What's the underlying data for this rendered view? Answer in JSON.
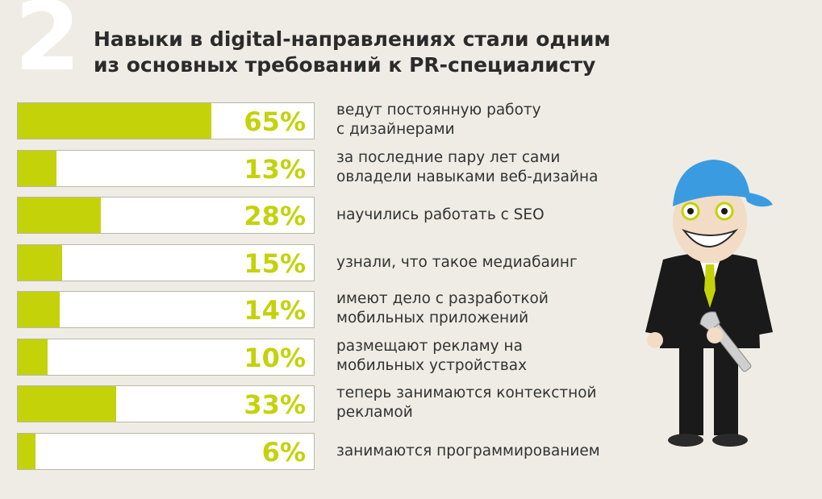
{
  "section_number": "2",
  "title_lines": [
    "Навыки в digital-направлениях стали одним",
    "из основных требований к PR-специалисту"
  ],
  "colors": {
    "accent": "#c4d20a",
    "background": "#eeece4",
    "bar_track": "#ffffff",
    "text": "#2b2b2b",
    "hat": "#3b9be0"
  },
  "chart_data": {
    "type": "bar",
    "orientation": "horizontal",
    "unit": "%",
    "xlim": [
      0,
      100
    ],
    "categories": [
      "ведут постоянную работу с дизайнерами",
      "за последние пару лет сами овладели навыками веб-дизайна",
      "научились работать с SEO",
      "узнали, что такое медиабаинг",
      "имеют дело с разработкой мобильных приложений",
      "размещают рекламу на мобильных устройствах",
      "теперь занимаются контекстной рекламой",
      "занимаются программированием"
    ],
    "values": [
      65,
      13,
      28,
      15,
      14,
      10,
      33,
      6
    ],
    "value_labels": [
      "65%",
      "13%",
      "28%",
      "15%",
      "14%",
      "10%",
      "33%",
      "6%"
    ],
    "label_lines": [
      [
        "ведут постоянную работу",
        "с дизайнерами"
      ],
      [
        "за последние пару лет сами",
        "овладели навыками веб-дизайна"
      ],
      [
        "научились работать с SEO"
      ],
      [
        "узнали, что такое медиабаинг"
      ],
      [
        "имеют дело с разработкой",
        "мобильных приложений"
      ],
      [
        "размещают рекламу на",
        "мобильных устройствах"
      ],
      [
        "теперь занимаются контекстной",
        "рекламой"
      ],
      [
        "занимаются программированием"
      ]
    ],
    "grid": false,
    "legend": "none"
  },
  "illustration": {
    "icon": "mascot-with-wrench-icon"
  }
}
